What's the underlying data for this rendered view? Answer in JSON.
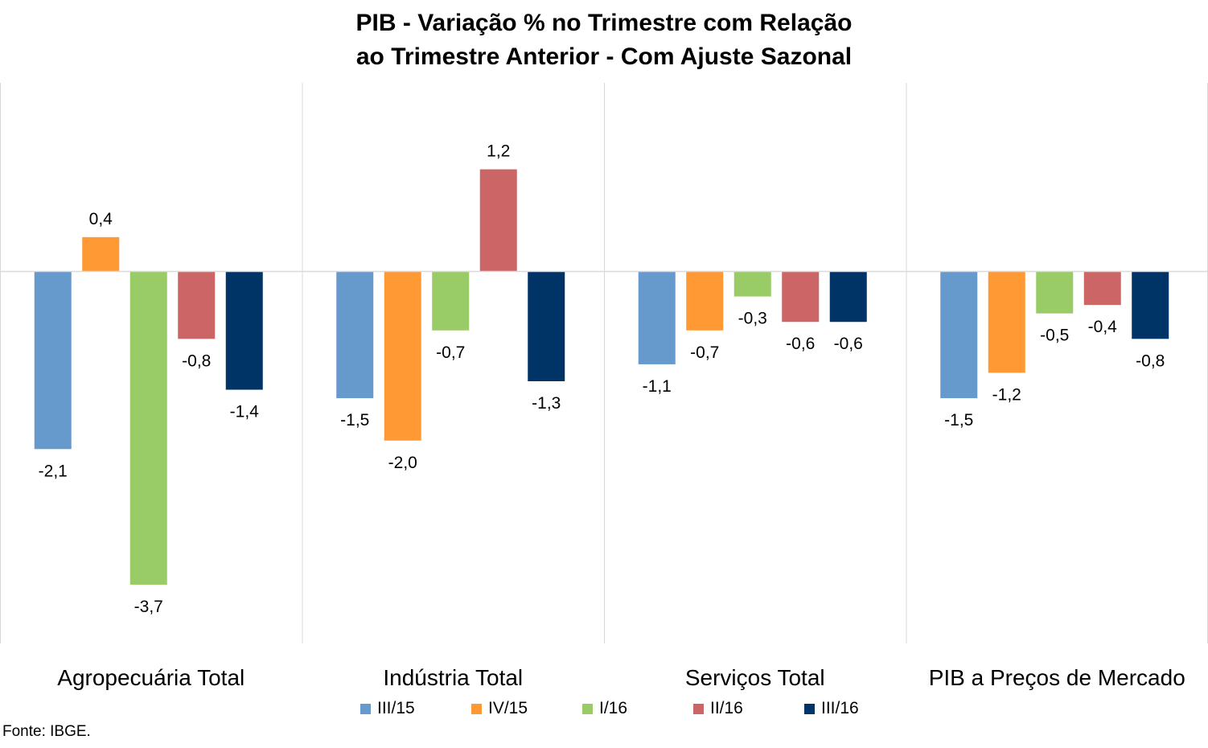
{
  "title_line1": "PIB - Variação % no Trimestre com Relação",
  "title_line2": "ao Trimestre Anterior - Com Ajuste Sazonal",
  "source": "Fonte: IBGE.",
  "chart_data": {
    "type": "bar",
    "categories": [
      "Agropecuária Total",
      "Indústria Total",
      "Serviços Total",
      "PIB a Preços de Mercado"
    ],
    "series": [
      {
        "name": "III/15",
        "color": "#6699CC",
        "values": [
          -2.1,
          -1.5,
          -1.1,
          -1.5
        ],
        "labels": [
          "-2,1",
          "-1,5",
          "-1,1",
          "-1,5"
        ]
      },
      {
        "name": "IV/15",
        "color": "#FF9933",
        "values": [
          0.4,
          -2.0,
          -0.7,
          -1.2
        ],
        "labels": [
          "0,4",
          "-2,0",
          "-0,7",
          "-1,2"
        ]
      },
      {
        "name": "I/16",
        "color": "#99CC66",
        "values": [
          -3.7,
          -0.7,
          -0.3,
          -0.5
        ],
        "labels": [
          "-3,7",
          "-0,7",
          "-0,3",
          "-0,5"
        ]
      },
      {
        "name": "II/16",
        "color": "#CC6666",
        "values": [
          -0.8,
          1.2,
          -0.6,
          -0.4
        ],
        "labels": [
          "-0,8",
          "1,2",
          "-0,6",
          "-0,4"
        ]
      },
      {
        "name": "III/16",
        "color": "#003366",
        "values": [
          -1.4,
          -1.3,
          -0.6,
          -0.8
        ],
        "labels": [
          "-1,4",
          "-1,3",
          "-0,6",
          "-0,8"
        ]
      }
    ],
    "ylim": [
      -4.0,
      2.0
    ],
    "grid": true,
    "legend_position": "bottom"
  }
}
